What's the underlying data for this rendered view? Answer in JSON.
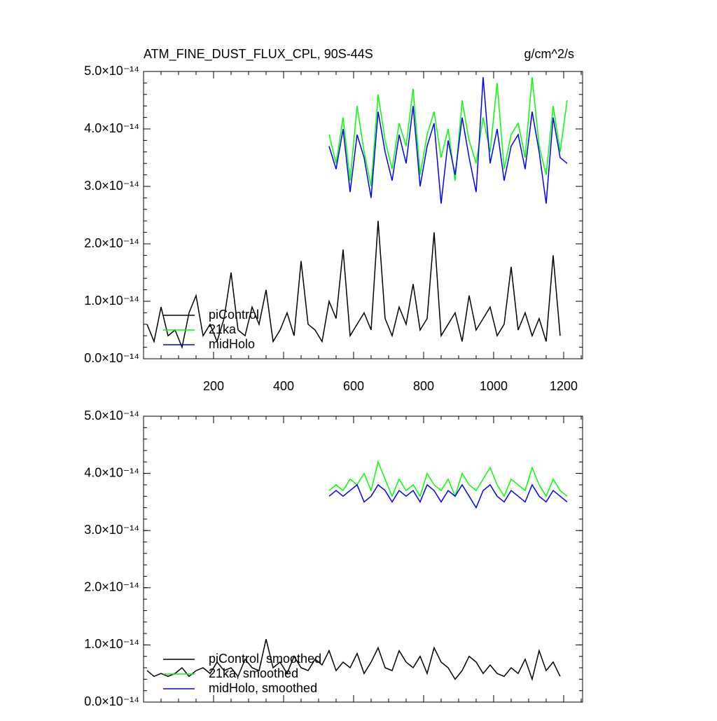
{
  "chart_data": [
    {
      "type": "line",
      "title": "ATM_FINE_DUST_FLUX_CPL, 90S-44S",
      "units": "g/cm^2/s",
      "xlim": [
        0,
        1254
      ],
      "xticks": [
        200,
        400,
        600,
        800,
        1000,
        1200
      ],
      "ylim": [
        0,
        5e-14
      ],
      "yticks": [
        {
          "value": 0,
          "label": "0.0×10⁻¹⁴"
        },
        {
          "value": 1e-14,
          "label": "1.0×10⁻¹⁴"
        },
        {
          "value": 2e-14,
          "label": "2.0×10⁻¹⁴"
        },
        {
          "value": 3e-14,
          "label": "3.0×10⁻¹⁴"
        },
        {
          "value": 4e-14,
          "label": "4.0×10⁻¹⁴"
        },
        {
          "value": 5e-14,
          "label": "5.0×10⁻¹⁴"
        }
      ],
      "series": [
        {
          "name": "piControl",
          "color": "#000000",
          "x": [
            10,
            30,
            50,
            70,
            90,
            110,
            130,
            150,
            170,
            190,
            210,
            230,
            250,
            270,
            290,
            310,
            330,
            350,
            370,
            390,
            410,
            430,
            450,
            470,
            490,
            510,
            530,
            550,
            570,
            590,
            610,
            630,
            650,
            670,
            690,
            710,
            730,
            750,
            770,
            790,
            810,
            830,
            850,
            870,
            890,
            910,
            930,
            950,
            970,
            990,
            1010,
            1030,
            1050,
            1070,
            1090,
            1110,
            1130,
            1150,
            1170,
            1190
          ],
          "values": [
            6e-15,
            3e-15,
            9e-15,
            4e-15,
            5e-15,
            2e-15,
            8e-15,
            1.1e-14,
            4e-15,
            6e-15,
            3e-15,
            7e-15,
            1.5e-14,
            5e-15,
            4e-15,
            9e-15,
            6e-15,
            1.2e-14,
            3e-15,
            5e-15,
            8e-15,
            4e-15,
            1.7e-14,
            6e-15,
            5e-15,
            3e-15,
            1e-14,
            7e-15,
            1.9e-14,
            4e-15,
            6e-15,
            8e-15,
            5e-15,
            2.4e-14,
            7e-15,
            4e-15,
            9e-15,
            6e-15,
            1.3e-14,
            5e-15,
            7e-15,
            2.2e-14,
            4e-15,
            6e-15,
            8e-15,
            3e-15,
            1.1e-14,
            5e-15,
            7e-15,
            9e-15,
            4e-15,
            6e-15,
            1.6e-14,
            5e-15,
            8e-15,
            4e-15,
            7e-15,
            3e-15,
            1.8e-14,
            4e-15
          ]
        },
        {
          "name": "21ka",
          "color": "#00ff00",
          "x": [
            530,
            550,
            570,
            590,
            610,
            630,
            650,
            670,
            690,
            710,
            730,
            750,
            770,
            790,
            810,
            830,
            850,
            870,
            890,
            910,
            930,
            950,
            970,
            990,
            1010,
            1030,
            1050,
            1070,
            1090,
            1110,
            1130,
            1150,
            1170,
            1190,
            1210
          ],
          "values": [
            3.9e-14,
            3.4e-14,
            4.2e-14,
            3.1e-14,
            4.4e-14,
            3.6e-14,
            3e-14,
            4.6e-14,
            3.8e-14,
            3.3e-14,
            4.1e-14,
            3.7e-14,
            4.7e-14,
            3.2e-14,
            3.9e-14,
            4.3e-14,
            3.5e-14,
            4e-14,
            3.1e-14,
            4.5e-14,
            3.8e-14,
            3.4e-14,
            4.2e-14,
            3.6e-14,
            4.8e-14,
            3.3e-14,
            3.9e-14,
            4.1e-14,
            3.5e-14,
            4.9e-14,
            3.7e-14,
            3.2e-14,
            4.4e-14,
            3.6e-14,
            4.5e-14
          ]
        },
        {
          "name": "midHolo",
          "color": "#0000ff",
          "x": [
            530,
            550,
            570,
            590,
            610,
            630,
            650,
            670,
            690,
            710,
            730,
            750,
            770,
            790,
            810,
            830,
            850,
            870,
            890,
            910,
            930,
            950,
            970,
            990,
            1010,
            1030,
            1050,
            1070,
            1090,
            1110,
            1130,
            1150,
            1170,
            1190,
            1210
          ],
          "values": [
            3.7e-14,
            3.3e-14,
            4e-14,
            2.9e-14,
            3.9e-14,
            3.5e-14,
            2.8e-14,
            4.3e-14,
            3.6e-14,
            3.1e-14,
            3.9e-14,
            3.4e-14,
            4.4e-14,
            3e-14,
            3.7e-14,
            4.1e-14,
            2.7e-14,
            3.8e-14,
            3.2e-14,
            4.2e-14,
            3.5e-14,
            2.9e-14,
            4.9e-14,
            3.4e-14,
            4e-14,
            3.1e-14,
            3.7e-14,
            3.9e-14,
            3.3e-14,
            4.3e-14,
            3.6e-14,
            2.7e-14,
            4.2e-14,
            3.5e-14,
            3.4e-14
          ]
        }
      ]
    },
    {
      "type": "line",
      "xlim": [
        0,
        1254
      ],
      "ylim": [
        0,
        5e-14
      ],
      "yticks": [
        {
          "value": 0,
          "label": "0.0×10⁻¹⁴"
        },
        {
          "value": 1e-14,
          "label": "1.0×10⁻¹⁴"
        },
        {
          "value": 2e-14,
          "label": "2.0×10⁻¹⁴"
        },
        {
          "value": 3e-14,
          "label": "3.0×10⁻¹⁴"
        },
        {
          "value": 4e-14,
          "label": "4.0×10⁻¹⁴"
        },
        {
          "value": 5e-14,
          "label": "5.0×10⁻¹⁴"
        }
      ],
      "series": [
        {
          "name": "piControl, smoothed",
          "color": "#000000",
          "x": [
            10,
            30,
            50,
            70,
            90,
            110,
            130,
            150,
            170,
            190,
            210,
            230,
            250,
            270,
            290,
            310,
            330,
            350,
            370,
            390,
            410,
            430,
            450,
            470,
            490,
            510,
            530,
            550,
            570,
            590,
            610,
            630,
            650,
            670,
            690,
            710,
            730,
            750,
            770,
            790,
            810,
            830,
            850,
            870,
            890,
            910,
            930,
            950,
            970,
            990,
            1010,
            1030,
            1050,
            1070,
            1090,
            1110,
            1130,
            1150,
            1170,
            1190
          ],
          "values": [
            5.5e-15,
            4.5e-15,
            5e-15,
            4.5e-15,
            5e-15,
            6e-15,
            4.5e-15,
            5.5e-15,
            6e-15,
            5e-15,
            7e-15,
            5.5e-15,
            6e-15,
            4.5e-15,
            7.5e-15,
            6e-15,
            5.5e-15,
            1.1e-14,
            6e-15,
            7e-15,
            5e-15,
            8e-15,
            6e-15,
            5.5e-15,
            7.5e-15,
            6.5e-15,
            9e-15,
            5.5e-15,
            7e-15,
            6e-15,
            8.5e-15,
            5e-15,
            7e-15,
            9.5e-15,
            6e-15,
            5.5e-15,
            9e-15,
            7e-15,
            6e-15,
            8e-15,
            5e-15,
            9.5e-15,
            7e-15,
            6e-15,
            4e-15,
            5.5e-15,
            8e-15,
            7e-15,
            5e-15,
            6.5e-15,
            5e-15,
            4.5e-15,
            6e-15,
            5e-15,
            7.5e-15,
            4e-15,
            9e-15,
            5.5e-15,
            7e-15,
            4.5e-15
          ]
        },
        {
          "name": "21ka, smoothed",
          "color": "#00ff00",
          "x": [
            530,
            550,
            570,
            590,
            610,
            630,
            650,
            670,
            690,
            710,
            730,
            750,
            770,
            790,
            810,
            830,
            850,
            870,
            890,
            910,
            930,
            950,
            970,
            990,
            1010,
            1030,
            1050,
            1070,
            1090,
            1110,
            1130,
            1150,
            1170,
            1190,
            1210
          ],
          "values": [
            3.7e-14,
            3.8e-14,
            3.7e-14,
            3.9e-14,
            3.8e-14,
            4e-14,
            3.7e-14,
            4.2e-14,
            3.9e-14,
            3.6e-14,
            3.9e-14,
            3.7e-14,
            3.8e-14,
            3.6e-14,
            4e-14,
            3.8e-14,
            3.7e-14,
            3.9e-14,
            3.6e-14,
            4e-14,
            3.8e-14,
            3.7e-14,
            3.9e-14,
            4.1e-14,
            3.8e-14,
            3.6e-14,
            3.9e-14,
            3.8e-14,
            3.7e-14,
            4.1e-14,
            3.8e-14,
            3.6e-14,
            3.9e-14,
            3.7e-14,
            3.6e-14
          ]
        },
        {
          "name": "midHolo, smoothed",
          "color": "#0000ff",
          "x": [
            530,
            550,
            570,
            590,
            610,
            630,
            650,
            670,
            690,
            710,
            730,
            750,
            770,
            790,
            810,
            830,
            850,
            870,
            890,
            910,
            930,
            950,
            970,
            990,
            1010,
            1030,
            1050,
            1070,
            1090,
            1110,
            1130,
            1150,
            1170,
            1190,
            1210
          ],
          "values": [
            3.6e-14,
            3.7e-14,
            3.6e-14,
            3.7e-14,
            3.8e-14,
            3.5e-14,
            3.6e-14,
            3.8e-14,
            3.7e-14,
            3.5e-14,
            3.7e-14,
            3.6e-14,
            3.7e-14,
            3.5e-14,
            3.8e-14,
            3.7e-14,
            3.5e-14,
            3.7e-14,
            3.6e-14,
            3.8e-14,
            3.6e-14,
            3.4e-14,
            3.7e-14,
            3.8e-14,
            3.6e-14,
            3.5e-14,
            3.7e-14,
            3.6e-14,
            3.5e-14,
            3.8e-14,
            3.6e-14,
            3.5e-14,
            3.7e-14,
            3.6e-14,
            3.5e-14
          ]
        }
      ]
    }
  ]
}
